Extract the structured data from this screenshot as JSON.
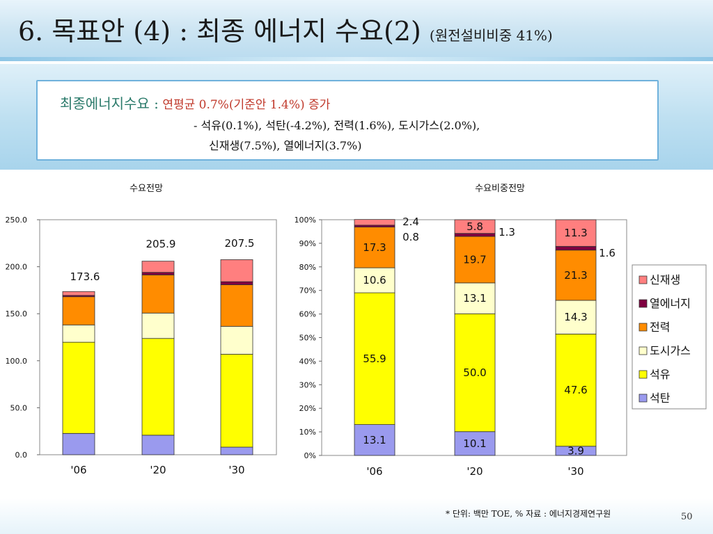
{
  "slide": {
    "title": "6. 목표안 (4) : 최종 에너지 수요(2)",
    "title_sub": "(원전설비비중 41%)",
    "summary": {
      "label": "최종에너지수요 :",
      "line1": "연평균 0.7%(기준안 1.4%) 증가",
      "line2": "- 석유(0.1%), 석탄(-4.2%), 전력(1.6%), 도시가스(2.0%),",
      "line3": "신재생(7.5%), 열에너지(3.7%)"
    },
    "footnote": "* 단위: 백만 TOE, % 자료 : 에너지경제연구원",
    "page_number": "50"
  },
  "colors": {
    "석탄": "#9a9aee",
    "석유": "#ffff00",
    "도시가스": "#ffffcc",
    "전력": "#ff8c00",
    "열에너지": "#800040",
    "신재생": "#ff7f7f"
  },
  "chart_data": [
    {
      "type": "bar",
      "stacked": true,
      "title": "수요전망",
      "categories": [
        "'06",
        "'20",
        "'30"
      ],
      "ylim": [
        0,
        250
      ],
      "yticks": [
        "0.0",
        "50.0",
        "100.0",
        "150.0",
        "200.0",
        "250.0"
      ],
      "totals": [
        "173.6",
        "205.9",
        "207.5"
      ],
      "series": [
        {
          "name": "석탄",
          "values": [
            22.7,
            20.8,
            8.1
          ]
        },
        {
          "name": "석유",
          "values": [
            97.0,
            102.9,
            98.8
          ]
        },
        {
          "name": "도시가스",
          "values": [
            18.4,
            27.0,
            29.7
          ]
        },
        {
          "name": "전력",
          "values": [
            30.0,
            40.6,
            44.2
          ]
        },
        {
          "name": "열에너지",
          "values": [
            1.4,
            2.7,
            3.3
          ]
        },
        {
          "name": "신재생",
          "values": [
            4.1,
            11.9,
            23.4
          ]
        }
      ]
    },
    {
      "type": "bar",
      "stacked": true,
      "percent": true,
      "title": "수요비중전망",
      "categories": [
        "'06",
        "'20",
        "'30"
      ],
      "ylim": [
        0,
        100
      ],
      "yticks": [
        "0%",
        "10%",
        "20%",
        "30%",
        "40%",
        "50%",
        "60%",
        "70%",
        "80%",
        "90%",
        "100%"
      ],
      "legend_position": "right",
      "series": [
        {
          "name": "석탄",
          "values": [
            13.1,
            10.1,
            3.9
          ],
          "labels": [
            "13.1",
            "10.1",
            "3.9"
          ]
        },
        {
          "name": "석유",
          "values": [
            55.9,
            50.0,
            47.6
          ],
          "labels": [
            "55.9",
            "50.0",
            "47.6"
          ]
        },
        {
          "name": "도시가스",
          "values": [
            10.6,
            13.1,
            14.3
          ],
          "labels": [
            "10.6",
            "13.1",
            "14.3"
          ]
        },
        {
          "name": "전력",
          "values": [
            17.3,
            19.7,
            21.3
          ],
          "labels": [
            "17.3",
            "19.7",
            "21.3"
          ]
        },
        {
          "name": "열에너지",
          "values": [
            0.8,
            1.3,
            1.6
          ],
          "labels": [
            "0.8",
            "1.3",
            "1.6"
          ]
        },
        {
          "name": "신재생",
          "values": [
            2.4,
            5.8,
            11.3
          ],
          "labels": [
            "2.4",
            "5.8",
            "11.3"
          ]
        }
      ]
    }
  ]
}
